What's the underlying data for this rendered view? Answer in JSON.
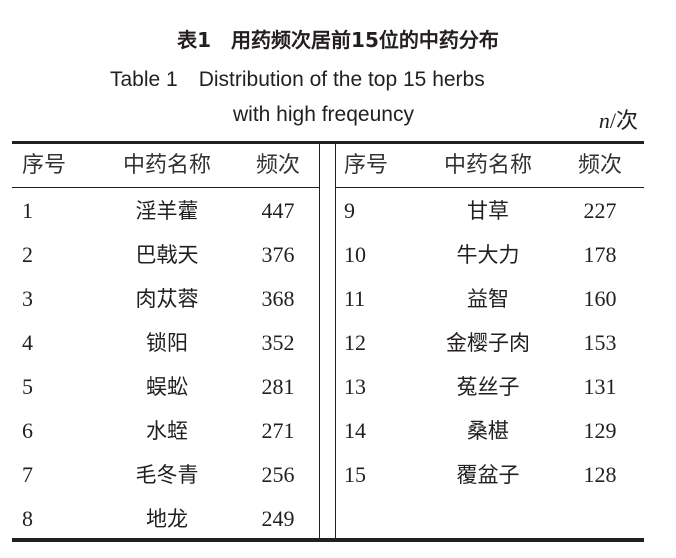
{
  "title_cn": "表1　用药频次居前15位的中药分布",
  "title_en_line1": "Table 1　Distribution of the top 15 herbs",
  "title_en_line2": "with high freqeuncy",
  "unit_italic": "n",
  "unit_rest": "/次",
  "headers": {
    "seq": "序号",
    "name": "中药名称",
    "freq": "频次"
  },
  "left_rows": [
    {
      "seq": "1",
      "name": "淫羊藿",
      "freq": "447"
    },
    {
      "seq": "2",
      "name": "巴戟天",
      "freq": "376"
    },
    {
      "seq": "3",
      "name": "肉苁蓉",
      "freq": "368"
    },
    {
      "seq": "4",
      "name": "锁阳",
      "freq": "352"
    },
    {
      "seq": "5",
      "name": "蜈蚣",
      "freq": "281"
    },
    {
      "seq": "6",
      "name": "水蛭",
      "freq": "271"
    },
    {
      "seq": "7",
      "name": "毛冬青",
      "freq": "256"
    },
    {
      "seq": "8",
      "name": "地龙",
      "freq": "249"
    }
  ],
  "right_rows": [
    {
      "seq": "9",
      "name": "甘草",
      "freq": "227"
    },
    {
      "seq": "10",
      "name": "牛大力",
      "freq": "178"
    },
    {
      "seq": "11",
      "name": "益智",
      "freq": "160"
    },
    {
      "seq": "12",
      "name": "金樱子肉",
      "freq": "153"
    },
    {
      "seq": "13",
      "name": "菟丝子",
      "freq": "131"
    },
    {
      "seq": "14",
      "name": "桑椹",
      "freq": "129"
    },
    {
      "seq": "15",
      "name": "覆盆子",
      "freq": "128"
    }
  ]
}
